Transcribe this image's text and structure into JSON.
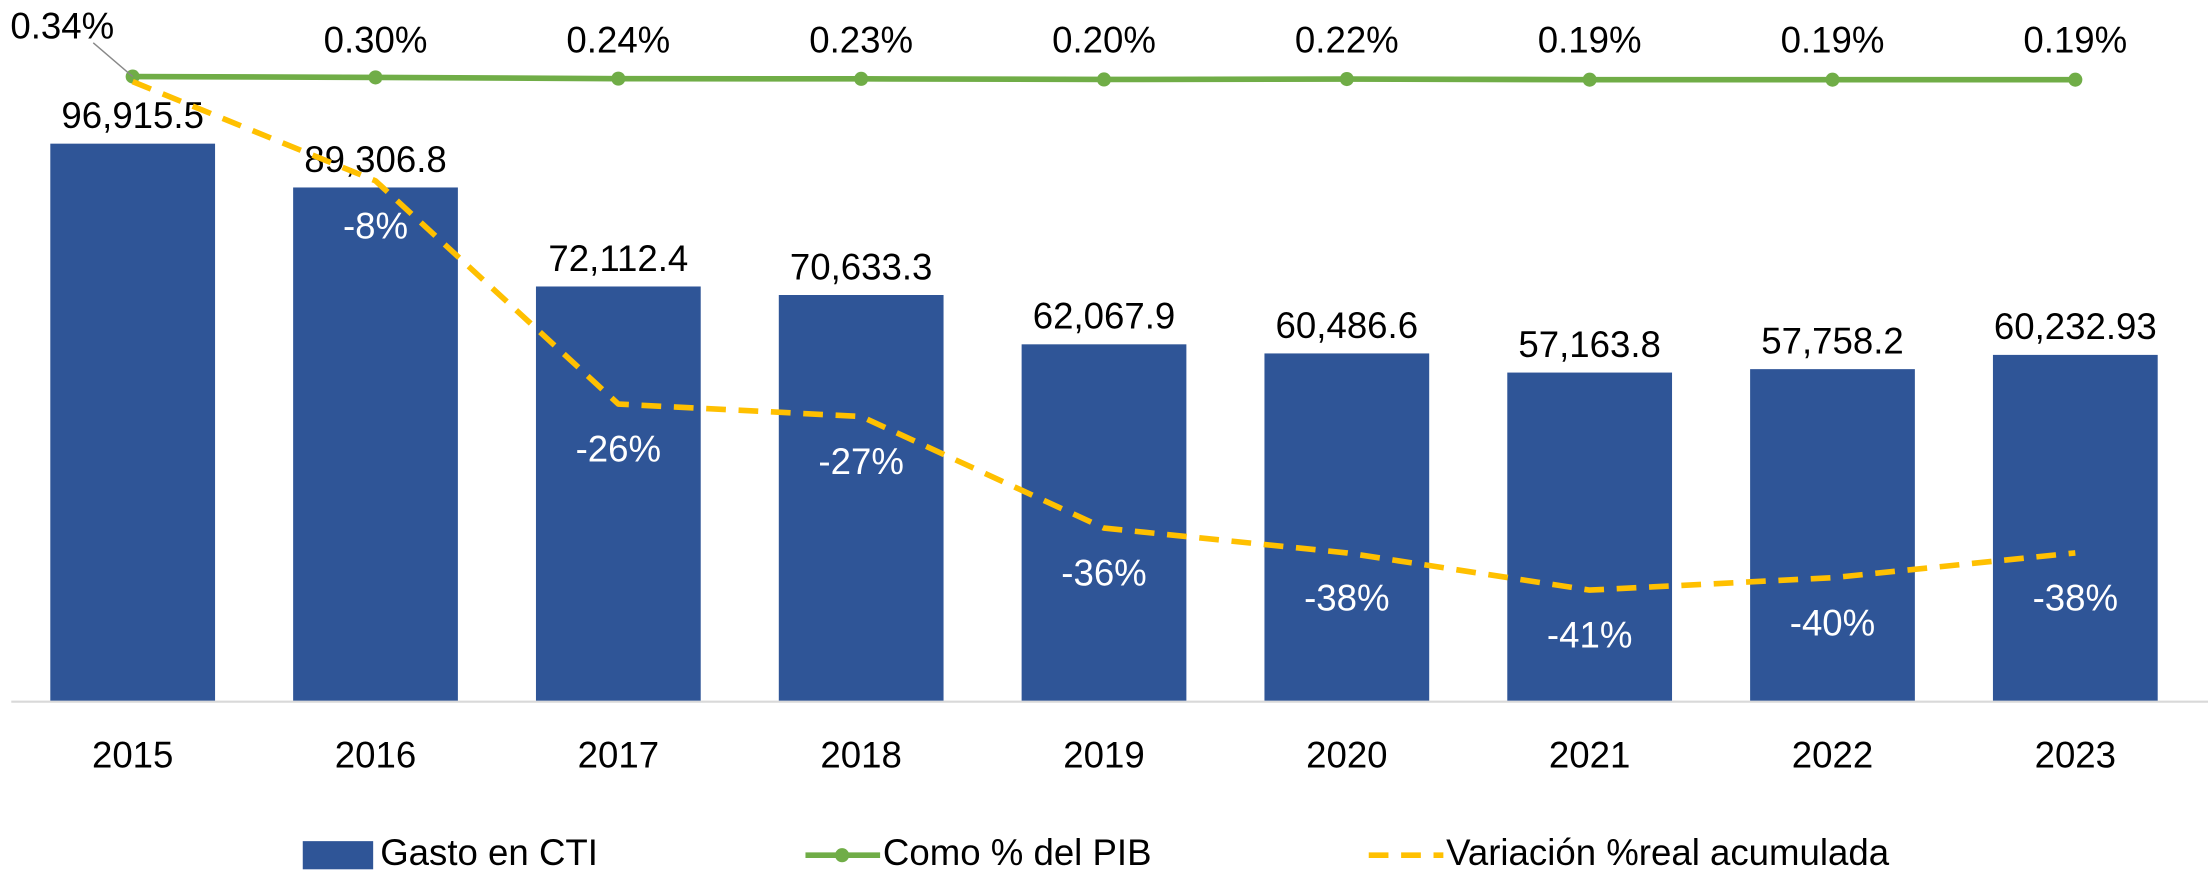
{
  "chart_data": {
    "type": "bar",
    "categories": [
      "2015",
      "2016",
      "2017",
      "2018",
      "2019",
      "2020",
      "2021",
      "2022",
      "2023"
    ],
    "ylim": [
      0,
      112000
    ],
    "y2lim": [
      -50,
      2
    ],
    "y3lim": [
      -30,
      1.3
    ],
    "series": [
      {
        "name": "Gasto en CTI",
        "type": "bar",
        "color": "#2f5597",
        "values": [
          96915.5,
          89306.8,
          72112.4,
          70633.3,
          62067.9,
          60486.6,
          57163.8,
          57758.2,
          60232.93
        ],
        "value_labels": [
          "96,915.5",
          "89,306.8",
          "72,112.4",
          "70,633.3",
          "62,067.9",
          "60,486.6",
          "57,163.8",
          "57,758.2",
          "60,232.93"
        ]
      },
      {
        "name": "Como % del PIB",
        "type": "line",
        "axis": "y3",
        "color": "#70ad47",
        "values": [
          0.34,
          0.3,
          0.24,
          0.23,
          0.2,
          0.22,
          0.19,
          0.19,
          0.19
        ],
        "value_labels": [
          "0.34%",
          "0.30%",
          "0.24%",
          "0.23%",
          "0.20%",
          "0.22%",
          "0.19%",
          "0.19%",
          "0.19%"
        ]
      },
      {
        "name": "Variación %real acumulada",
        "type": "line",
        "axis": "y2",
        "color": "#ffc000",
        "dashed": true,
        "values": [
          0,
          -8,
          -26,
          -27,
          -36,
          -38,
          -41,
          -40,
          -38
        ],
        "value_labels": [
          null,
          "-8%",
          "-26%",
          "-27%",
          "-36%",
          "-38%",
          "-41%",
          "-40%",
          "-38%"
        ]
      }
    ]
  }
}
